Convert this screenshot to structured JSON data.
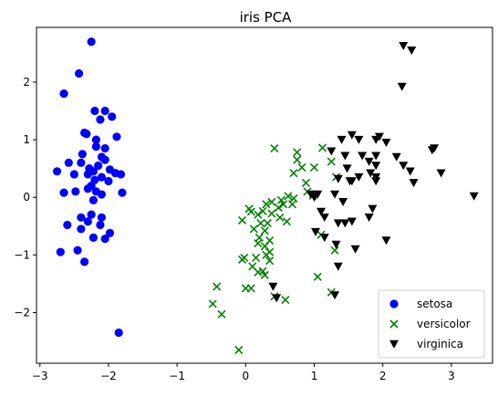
{
  "chart_data": {
    "type": "scatter",
    "title": "iris PCA",
    "xlabel": "",
    "ylabel": "",
    "xlim": [
      -3.05,
      3.6
    ],
    "ylim": [
      -2.88,
      2.95
    ],
    "xticks": [
      -3,
      -2,
      -1,
      0,
      1,
      2,
      3
    ],
    "yticks": [
      -2,
      -1,
      0,
      1,
      2
    ],
    "grid": false,
    "legend_position": "lower-right",
    "series": [
      {
        "name": "setosa",
        "color": "#0000ff",
        "marker": "circle",
        "points": [
          [
            -2.25,
            2.7
          ],
          [
            -2.43,
            2.15
          ],
          [
            -2.65,
            1.8
          ],
          [
            -2.2,
            1.5
          ],
          [
            -2.05,
            1.5
          ],
          [
            -1.95,
            1.4
          ],
          [
            -2.12,
            1.35
          ],
          [
            -2.35,
            1.12
          ],
          [
            -2.32,
            1.1
          ],
          [
            -2.18,
            1.0
          ],
          [
            -1.88,
            1.05
          ],
          [
            -2.18,
            0.88
          ],
          [
            -2.05,
            0.85
          ],
          [
            -2.38,
            0.75
          ],
          [
            -2.1,
            0.7
          ],
          [
            -2.58,
            0.6
          ],
          [
            -2.05,
            0.65
          ],
          [
            -2.4,
            0.6
          ],
          [
            -2.15,
            0.55
          ],
          [
            -2.28,
            0.5
          ],
          [
            -2.22,
            0.45
          ],
          [
            -1.98,
            0.48
          ],
          [
            -1.9,
            0.42
          ],
          [
            -1.82,
            0.4
          ],
          [
            -2.3,
            0.4
          ],
          [
            -2.5,
            0.4
          ],
          [
            -2.75,
            0.45
          ],
          [
            -2.1,
            0.35
          ],
          [
            -2.2,
            0.3
          ],
          [
            -2.3,
            0.15
          ],
          [
            -2.0,
            0.28
          ],
          [
            -2.25,
            0.2
          ],
          [
            -2.48,
            0.1
          ],
          [
            -2.18,
            0.1
          ],
          [
            -1.8,
            0.08
          ],
          [
            -2.1,
            0.05
          ],
          [
            -2.22,
            -0.05
          ],
          [
            -2.65,
            0.08
          ],
          [
            -2.4,
            -0.35
          ],
          [
            -2.25,
            -0.3
          ],
          [
            -2.1,
            -0.35
          ],
          [
            -2.3,
            -0.42
          ],
          [
            -2.6,
            -0.48
          ],
          [
            -2.12,
            -0.48
          ],
          [
            -2.4,
            -0.55
          ],
          [
            -2.22,
            -0.7
          ],
          [
            -1.98,
            -0.62
          ],
          [
            -2.05,
            -0.72
          ],
          [
            -2.7,
            -0.95
          ],
          [
            -2.45,
            -0.92
          ],
          [
            -2.35,
            -1.12
          ],
          [
            -1.85,
            -2.35
          ]
        ]
      },
      {
        "name": "versicolor",
        "color": "#008000",
        "marker": "x",
        "points": [
          [
            0.42,
            0.85
          ],
          [
            0.75,
            0.78
          ],
          [
            1.12,
            0.86
          ],
          [
            0.75,
            0.65
          ],
          [
            0.82,
            0.52
          ],
          [
            1.0,
            0.52
          ],
          [
            1.25,
            0.62
          ],
          [
            1.32,
            0.35
          ],
          [
            0.7,
            0.42
          ],
          [
            0.88,
            0.25
          ],
          [
            0.9,
            0.1
          ],
          [
            0.98,
            0.03
          ],
          [
            0.62,
            0.02
          ],
          [
            0.7,
            -0.02
          ],
          [
            0.52,
            -0.05
          ],
          [
            0.38,
            -0.08
          ],
          [
            0.55,
            -0.12
          ],
          [
            0.68,
            -0.12
          ],
          [
            0.3,
            -0.12
          ],
          [
            0.48,
            -0.18
          ],
          [
            0.25,
            -0.24
          ],
          [
            0.05,
            -0.2
          ],
          [
            0.08,
            -0.25
          ],
          [
            -0.05,
            -0.4
          ],
          [
            0.18,
            -0.3
          ],
          [
            0.38,
            -0.28
          ],
          [
            0.5,
            -0.35
          ],
          [
            0.6,
            -0.42
          ],
          [
            0.22,
            -0.45
          ],
          [
            0.32,
            -0.45
          ],
          [
            0.12,
            -0.55
          ],
          [
            0.28,
            -0.58
          ],
          [
            0.2,
            -0.7
          ],
          [
            0.35,
            -0.75
          ],
          [
            0.18,
            -0.8
          ],
          [
            0.28,
            -0.85
          ],
          [
            0.35,
            -0.95
          ],
          [
            0.3,
            -1.0
          ],
          [
            0.15,
            -1.05
          ],
          [
            -0.02,
            -1.05
          ],
          [
            -0.05,
            -1.08
          ],
          [
            0.35,
            -1.1
          ],
          [
            0.1,
            -1.2
          ],
          [
            0.25,
            -1.28
          ],
          [
            0.18,
            -1.3
          ],
          [
            0.28,
            -1.35
          ],
          [
            1.1,
            -0.65
          ],
          [
            1.3,
            -0.92
          ],
          [
            1.05,
            -1.38
          ],
          [
            -0.42,
            -1.55
          ],
          [
            0.0,
            -1.58
          ],
          [
            0.08,
            -1.58
          ],
          [
            1.25,
            -1.65
          ],
          [
            0.42,
            -1.72
          ],
          [
            0.58,
            -1.78
          ],
          [
            -0.48,
            -1.85
          ],
          [
            -0.35,
            -2.03
          ],
          [
            -0.1,
            -2.65
          ]
        ]
      },
      {
        "name": "virginica",
        "color": "#000000",
        "marker": "triangle-down",
        "points": [
          [
            2.3,
            2.63
          ],
          [
            2.42,
            2.55
          ],
          [
            2.28,
            1.92
          ],
          [
            1.55,
            1.08
          ],
          [
            1.95,
            1.05
          ],
          [
            1.9,
            1.0
          ],
          [
            2.05,
            0.95
          ],
          [
            1.65,
            1.0
          ],
          [
            1.4,
            1.0
          ],
          [
            1.25,
            0.8
          ],
          [
            1.45,
            0.72
          ],
          [
            1.7,
            0.72
          ],
          [
            1.9,
            0.72
          ],
          [
            2.2,
            0.7
          ],
          [
            2.75,
            0.85
          ],
          [
            2.72,
            0.82
          ],
          [
            1.8,
            0.62
          ],
          [
            1.9,
            0.55
          ],
          [
            2.3,
            0.55
          ],
          [
            1.48,
            0.5
          ],
          [
            1.82,
            0.42
          ],
          [
            1.9,
            0.35
          ],
          [
            1.65,
            0.35
          ],
          [
            2.4,
            0.45
          ],
          [
            2.85,
            0.42
          ],
          [
            1.35,
            0.32
          ],
          [
            1.52,
            0.28
          ],
          [
            1.55,
            0.28
          ],
          [
            1.9,
            0.28
          ],
          [
            2.45,
            0.25
          ],
          [
            1.05,
            0.05
          ],
          [
            1.0,
            0.0
          ],
          [
            0.95,
            0.05
          ],
          [
            1.3,
            0.05
          ],
          [
            1.42,
            -0.08
          ],
          [
            1.1,
            -0.25
          ],
          [
            1.15,
            -0.35
          ],
          [
            1.35,
            -0.45
          ],
          [
            1.45,
            -0.45
          ],
          [
            1.55,
            -0.42
          ],
          [
            1.85,
            -0.2
          ],
          [
            1.8,
            -0.35
          ],
          [
            1.02,
            -0.6
          ],
          [
            1.15,
            -0.7
          ],
          [
            1.32,
            -0.82
          ],
          [
            1.6,
            -0.9
          ],
          [
            2.05,
            -0.75
          ],
          [
            1.35,
            -1.2
          ],
          [
            0.4,
            -1.55
          ],
          [
            0.45,
            -1.75
          ],
          [
            1.3,
            -1.7
          ],
          [
            3.33,
            0.02
          ]
        ]
      }
    ]
  }
}
